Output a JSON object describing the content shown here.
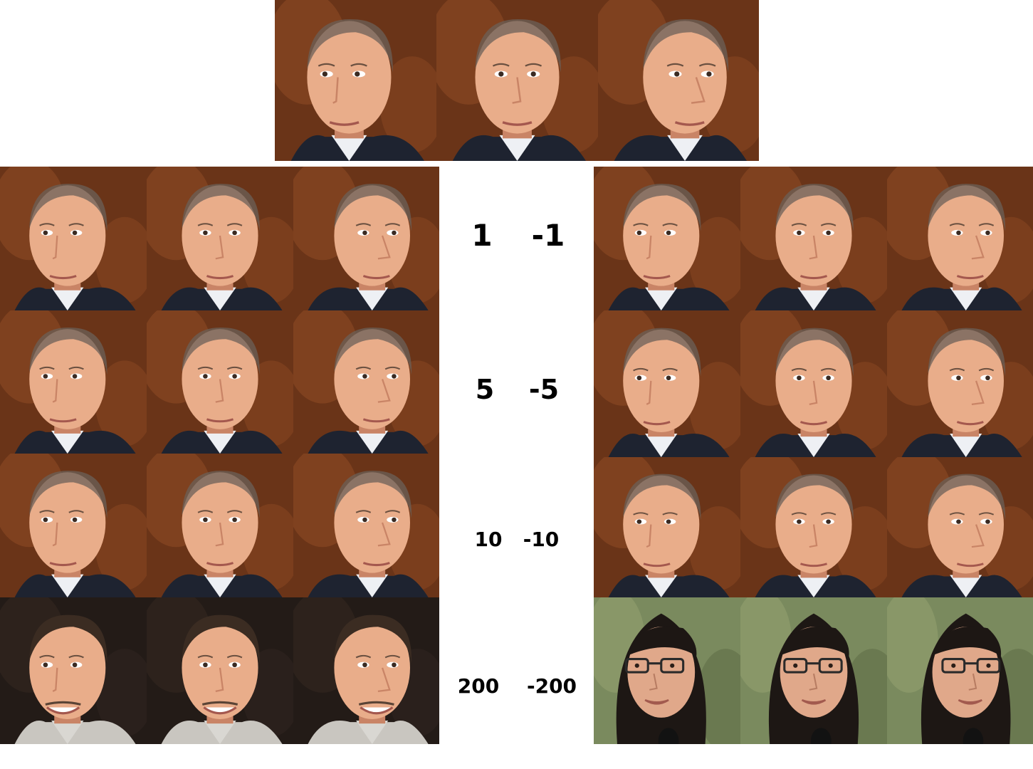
{
  "rows": [
    {
      "positive": "1",
      "negative": "-1"
    },
    {
      "positive": "5",
      "negative": "-5"
    },
    {
      "positive": "10",
      "negative": "-10"
    },
    {
      "positive": "200",
      "negative": "-200"
    }
  ],
  "palette": {
    "warm_background": "#6a3418",
    "warm_background_light": "#9a5328",
    "skin": "#e9ad8a",
    "skin_shadow": "#c98466",
    "hair_gray": "#6b6058",
    "suit_navy": "#1e2330",
    "shirt_white": "#eef0f4",
    "dark_background": "#231b17",
    "green_background": "#7a8a5e",
    "woman_hair": "#1d1714",
    "glasses": "#2a2a2a"
  }
}
